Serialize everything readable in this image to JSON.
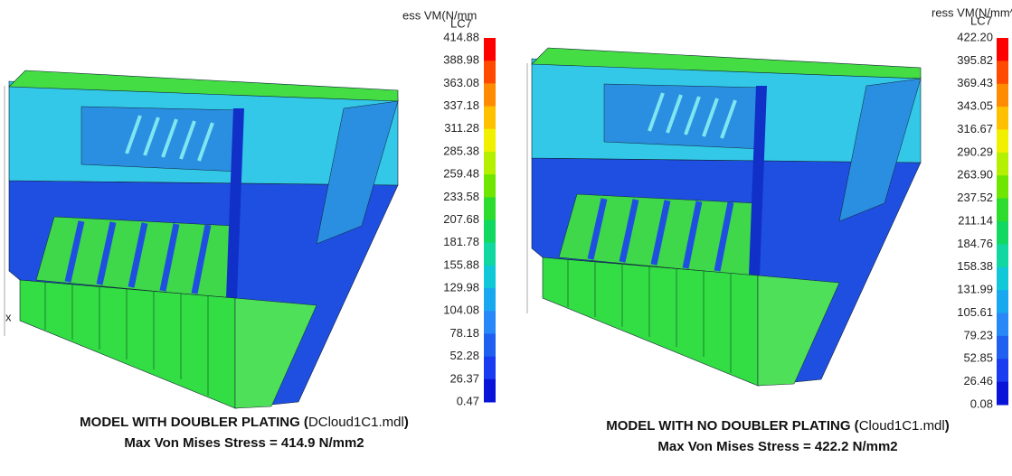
{
  "panels": [
    {
      "axis_label": "x",
      "legend": {
        "title": "ess VM(N/mm",
        "case": "LC7",
        "values": [
          "414.88",
          "388.98",
          "363.08",
          "337.18",
          "311.28",
          "285.38",
          "259.48",
          "233.58",
          "207.68",
          "181.78",
          "155.88",
          "129.98",
          "104.08",
          "78.18",
          "52.28",
          "26.37",
          "0.47"
        ],
        "colors": [
          "#ff0000",
          "#ff4a00",
          "#ff8c00",
          "#ffc000",
          "#f0f000",
          "#b4f000",
          "#6ee600",
          "#2edc2e",
          "#10d860",
          "#10d8a0",
          "#10c8d8",
          "#18a8f0",
          "#2888f8",
          "#1f60f0",
          "#1a3cf0",
          "#0a14d8"
        ]
      },
      "caption": {
        "label": "MODEL WITH DOUBLER PLATING (",
        "file": "DCloud1C1.mdl",
        "close": ")",
        "max_stress": "Max Von Mises Stress = 414.9 N/mm2"
      }
    },
    {
      "legend": {
        "title": "ress VM(N/mm^",
        "case": "LC7",
        "values": [
          "422.20",
          "395.82",
          "369.43",
          "343.05",
          "316.67",
          "290.29",
          "263.90",
          "237.52",
          "211.14",
          "184.76",
          "158.38",
          "131.99",
          "105.61",
          "79.23",
          "52.85",
          "26.46",
          "0.08"
        ],
        "colors": [
          "#ff0000",
          "#ff4a00",
          "#ff8c00",
          "#ffc000",
          "#f0f000",
          "#b4f000",
          "#6ee600",
          "#2edc2e",
          "#10d860",
          "#10d8a0",
          "#10c8d8",
          "#18a8f0",
          "#2888f8",
          "#1f60f0",
          "#1a3cf0",
          "#0a14d8"
        ]
      },
      "caption": {
        "label": "MODEL WITH NO DOUBLER PLATING (",
        "file": "Cloud1C1.mdl",
        "close": ")",
        "max_stress": "Max Von Mises Stress = 422.2 N/mm2"
      }
    }
  ]
}
